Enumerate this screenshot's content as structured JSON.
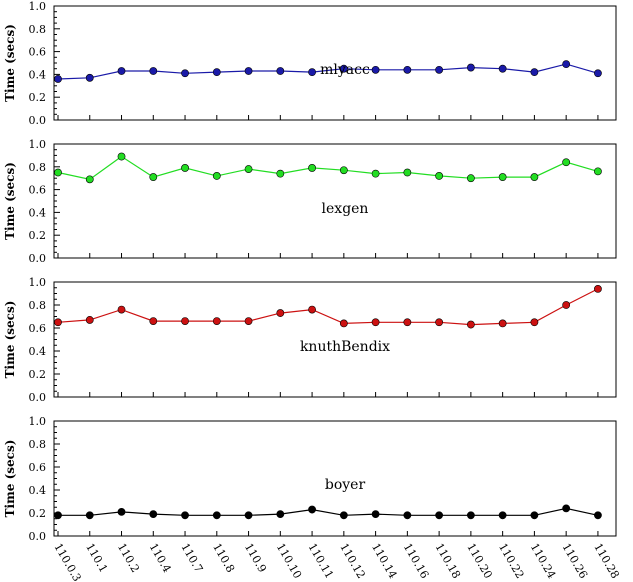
{
  "chart_data": [
    {
      "type": "line",
      "title": "mlyacc",
      "xlabel": "",
      "ylabel": "Time (secs)",
      "ylim": [
        0,
        1.0
      ],
      "yticks": [
        "0.0",
        "0.2",
        "0.4",
        "0.6",
        "0.8",
        "1.0"
      ],
      "categories": [
        "110.0.3",
        "110.1",
        "110.2",
        "110.4",
        "110.7",
        "110.8",
        "110.9",
        "110.10",
        "110.11",
        "110.12",
        "110.14",
        "110.16",
        "110.18",
        "110.20",
        "110.22",
        "110.24",
        "110.26",
        "110.28"
      ],
      "series": [
        {
          "color": "#1a1aa8",
          "values": [
            0.36,
            0.37,
            0.43,
            0.43,
            0.41,
            0.42,
            0.43,
            0.43,
            0.42,
            0.45,
            0.44,
            0.44,
            0.44,
            0.46,
            0.45,
            0.42,
            0.49,
            0.41
          ]
        }
      ]
    },
    {
      "type": "line",
      "title": "lexgen",
      "xlabel": "",
      "ylabel": "Time (secs)",
      "ylim": [
        0,
        1.0
      ],
      "yticks": [
        "0.0",
        "0.2",
        "0.4",
        "0.6",
        "0.8",
        "1.0"
      ],
      "categories": [
        "110.0.3",
        "110.1",
        "110.2",
        "110.4",
        "110.7",
        "110.8",
        "110.9",
        "110.10",
        "110.11",
        "110.12",
        "110.14",
        "110.16",
        "110.18",
        "110.20",
        "110.22",
        "110.24",
        "110.26",
        "110.28"
      ],
      "series": [
        {
          "color": "#22dd22",
          "values": [
            0.75,
            0.69,
            0.89,
            0.71,
            0.79,
            0.72,
            0.78,
            0.74,
            0.79,
            0.77,
            0.74,
            0.75,
            0.72,
            0.7,
            0.71,
            0.71,
            0.84,
            0.76
          ]
        }
      ]
    },
    {
      "type": "line",
      "title": "knuthBendix",
      "xlabel": "",
      "ylabel": "Time (secs)",
      "ylim": [
        0,
        1.0
      ],
      "yticks": [
        "0.0",
        "0.2",
        "0.4",
        "0.6",
        "0.8",
        "1.0"
      ],
      "categories": [
        "110.0.3",
        "110.1",
        "110.2",
        "110.4",
        "110.7",
        "110.8",
        "110.9",
        "110.10",
        "110.11",
        "110.12",
        "110.14",
        "110.16",
        "110.18",
        "110.20",
        "110.22",
        "110.24",
        "110.26",
        "110.28"
      ],
      "series": [
        {
          "color": "#cc1111",
          "values": [
            0.65,
            0.67,
            0.76,
            0.66,
            0.66,
            0.66,
            0.66,
            0.73,
            0.76,
            0.64,
            0.65,
            0.65,
            0.65,
            0.63,
            0.64,
            0.65,
            0.8,
            0.94
          ]
        }
      ]
    },
    {
      "type": "line",
      "title": "boyer",
      "xlabel": "",
      "ylabel": "Time (secs)",
      "ylim": [
        0,
        1.0
      ],
      "yticks": [
        "0.0",
        "0.2",
        "0.4",
        "0.6",
        "0.8",
        "1.0"
      ],
      "categories": [
        "110.0.3",
        "110.1",
        "110.2",
        "110.4",
        "110.7",
        "110.8",
        "110.9",
        "110.10",
        "110.11",
        "110.12",
        "110.14",
        "110.16",
        "110.18",
        "110.20",
        "110.22",
        "110.24",
        "110.26",
        "110.28"
      ],
      "series": [
        {
          "color": "#000000",
          "values": [
            0.18,
            0.18,
            0.21,
            0.19,
            0.18,
            0.18,
            0.18,
            0.19,
            0.23,
            0.18,
            0.19,
            0.18,
            0.18,
            0.18,
            0.18,
            0.18,
            0.24,
            0.18
          ]
        }
      ]
    }
  ]
}
